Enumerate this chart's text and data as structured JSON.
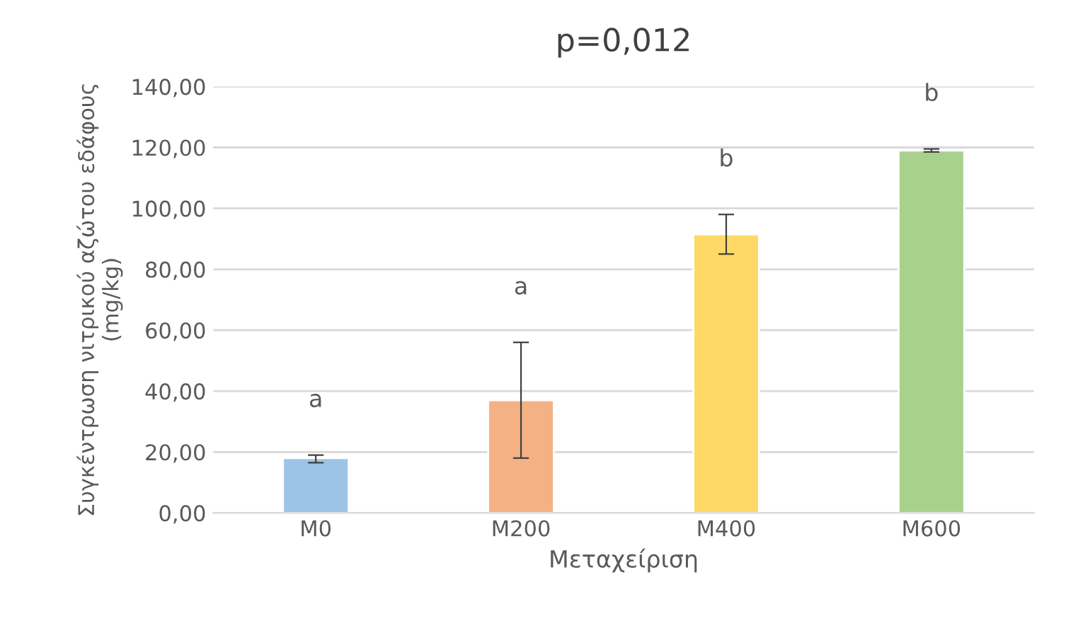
{
  "chart_data": {
    "type": "bar",
    "title": "p=0,012",
    "xlabel": "Μεταχείριση",
    "ylabel": "Συγκέντρωση νιτρικού αζώτου εδάφους\n(mg/kg)",
    "categories": [
      "M0",
      "M200",
      "M400",
      "M600"
    ],
    "values": [
      18,
      37,
      91.5,
      119
    ],
    "colors": [
      "#9dc3e6",
      "#f4b183",
      "#ffd966",
      "#a9d18e"
    ],
    "errors": [
      [
        16.5,
        19
      ],
      [
        18,
        56
      ],
      [
        85,
        98
      ],
      [
        118.5,
        119.5
      ]
    ],
    "annotations": [
      "a",
      "a",
      "b",
      "b"
    ],
    "ylim": [
      0,
      140
    ],
    "yticks": [
      {
        "value": 0,
        "label": "0,00"
      },
      {
        "value": 20,
        "label": "20,00"
      },
      {
        "value": 40,
        "label": "40,00"
      },
      {
        "value": 60,
        "label": "60,00"
      },
      {
        "value": 80,
        "label": "80,00"
      },
      {
        "value": 100,
        "label": "100,00"
      },
      {
        "value": 120,
        "label": "120,00"
      },
      {
        "value": 140,
        "label": "140,00"
      }
    ],
    "grid": "y"
  }
}
